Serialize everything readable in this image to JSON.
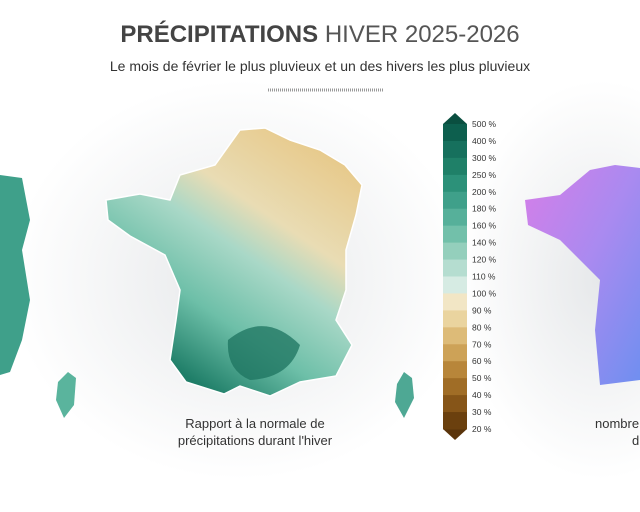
{
  "header": {
    "title_bold": "PRÉCIPITATIONS",
    "title_light": "HIVER 2025-2026",
    "subtitle": "Le mois de février le plus pluvieux et un des hivers les plus pluvieux"
  },
  "legend": {
    "labels": [
      "500 %",
      "400 %",
      "300 %",
      "250 %",
      "200 %",
      "180 %",
      "160 %",
      "140 %",
      "120 %",
      "110 %",
      "100 %",
      "90 %",
      "80 %",
      "70 %",
      "60 %",
      "50 %",
      "40 %",
      "30 %",
      "20 %"
    ],
    "colors": [
      "#0d5f4e",
      "#16705d",
      "#1f8068",
      "#2c9179",
      "#3fa08a",
      "#56b09a",
      "#72c0aa",
      "#94cfbc",
      "#b5ddd0",
      "#d6ebe3",
      "#f2e6c5",
      "#ead49f",
      "#ddbb78",
      "#cda257",
      "#b8863a",
      "#a06d26",
      "#865518",
      "#6b400e"
    ]
  },
  "map_caption": {
    "line1": "Rapport à la normale de",
    "line2": "précipitations durant l'hiver"
  },
  "right_caption": {
    "line1": "nombre",
    "line2": "d"
  }
}
